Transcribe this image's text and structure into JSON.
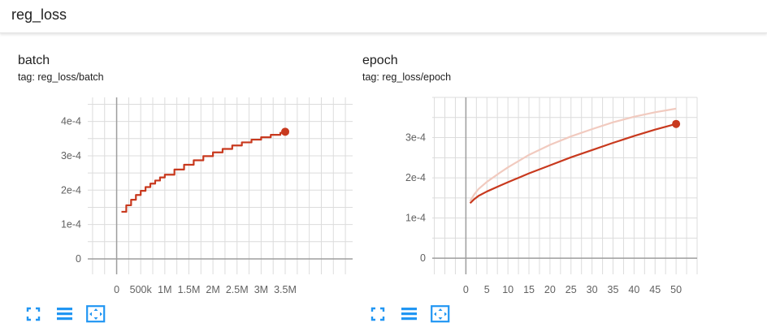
{
  "header": {
    "title": "reg_loss"
  },
  "cards": [
    {
      "title": "batch",
      "tag": "tag: reg_loss/batch",
      "toolbar": {
        "fullscreen_icon": "fullscreen-icon",
        "data_icon": "menu-icon",
        "fit_icon": "fit-domain-icon"
      }
    },
    {
      "title": "epoch",
      "tag": "tag: reg_loss/epoch",
      "toolbar": {
        "fullscreen_icon": "fullscreen-icon",
        "data_icon": "menu-icon",
        "fit_icon": "fit-domain-icon"
      }
    }
  ],
  "colors": {
    "accent": "#c8391e",
    "smooth_faint": "#f1cabf",
    "grid": "#dcdcdc",
    "axis": "#9e9e9e",
    "icon": "#2196f3"
  },
  "chart_data": [
    {
      "type": "line",
      "title": "batch",
      "xlabel": "",
      "ylabel": "",
      "x_ticks": [
        "0",
        "500k",
        "1M",
        "1.5M",
        "2M",
        "2.5M",
        "3M",
        "3.5M"
      ],
      "y_ticks": [
        "0",
        "1e-4",
        "2e-4",
        "3e-4",
        "4e-4"
      ],
      "xlim": [
        -600000,
        4900000
      ],
      "ylim": [
        -4.5e-05,
        0.00047
      ],
      "grid": true,
      "step": true,
      "series": [
        {
          "x": [
            100000,
            200000,
            300000,
            400000,
            500000,
            600000,
            700000,
            800000,
            900000,
            1000000,
            1200000,
            1400000,
            1600000,
            1800000,
            2000000,
            2200000,
            2400000,
            2600000,
            2800000,
            3000000,
            3200000,
            3400000,
            3500000
          ],
          "y": [
            0.000137,
            0.000156,
            0.000172,
            0.000186,
            0.000198,
            0.000209,
            0.000219,
            0.000228,
            0.000237,
            0.000245,
            0.00026,
            0.000274,
            0.000287,
            0.000299,
            0.00031,
            0.00032,
            0.00033,
            0.000339,
            0.000347,
            0.000354,
            0.000361,
            0.000367,
            0.00037
          ]
        }
      ]
    },
    {
      "type": "line",
      "title": "epoch",
      "xlabel": "",
      "ylabel": "",
      "x_ticks": [
        "0",
        "5",
        "10",
        "15",
        "20",
        "25",
        "30",
        "35",
        "40",
        "45",
        "50"
      ],
      "y_ticks": [
        "0",
        "1e-4",
        "2e-4",
        "3e-4"
      ],
      "xlim": [
        -8,
        55
      ],
      "ylim": [
        -4e-05,
        0.0004
      ],
      "grid": true,
      "step": false,
      "series": [
        {
          "x": [
            1,
            2,
            3,
            5,
            8,
            10,
            15,
            20,
            25,
            30,
            35,
            40,
            45,
            50
          ],
          "y": [
            0.000137,
            0.000147,
            0.000155,
            0.000166,
            0.00018,
            0.000189,
            0.000211,
            0.000231,
            0.000251,
            0.000269,
            0.000287,
            0.000304,
            0.00032,
            0.000334
          ]
        },
        {
          "x": [
            1,
            2,
            3,
            5,
            8,
            10,
            15,
            20,
            25,
            30,
            35,
            40,
            45,
            50
          ],
          "y": [
            0.000142,
            0.000159,
            0.000172,
            0.00019,
            0.000212,
            0.000226,
            0.000257,
            0.000282,
            0.000303,
            0.000321,
            0.000338,
            0.000352,
            0.000363,
            0.000372
          ]
        }
      ]
    }
  ]
}
